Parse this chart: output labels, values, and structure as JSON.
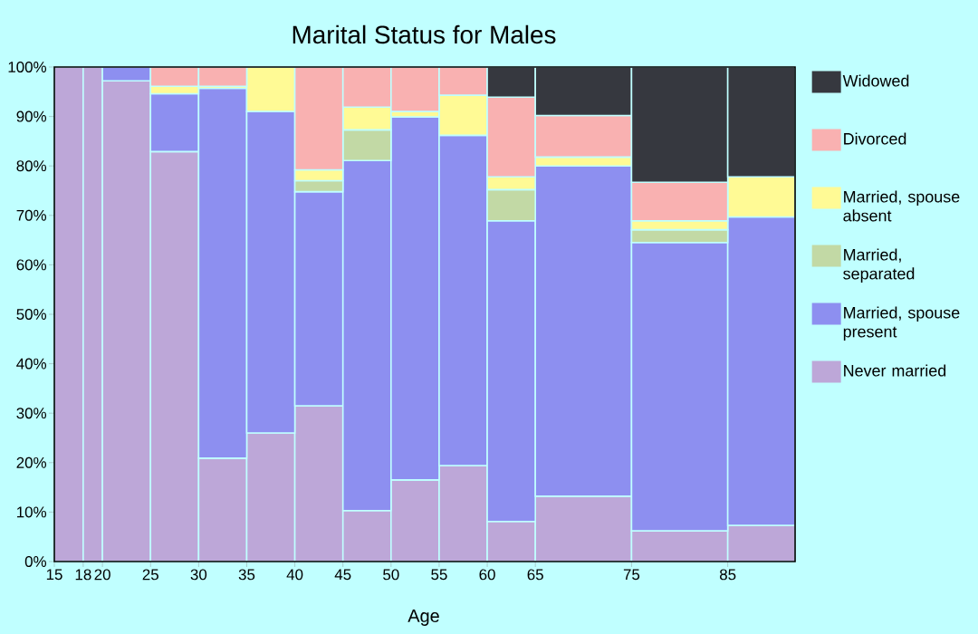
{
  "chart_data": {
    "type": "bar",
    "stacked": true,
    "title": "Marital Status for Males",
    "xlabel": "Age",
    "x": [
      16.5,
      19,
      22.5,
      27.5,
      32.5,
      37.5,
      42.5,
      47.5,
      52.5,
      57.5,
      62.5,
      70,
      80,
      88.5
    ],
    "xlim": [
      15,
      92
    ],
    "xticks": [
      15,
      18,
      20,
      25,
      30,
      35,
      40,
      45,
      50,
      55,
      60,
      65,
      75,
      85
    ],
    "ylim": [
      0,
      100
    ],
    "yticks": [
      {
        "value": 0,
        "label": "0%"
      },
      {
        "value": 10,
        "label": "10%"
      },
      {
        "value": 20,
        "label": "20%"
      },
      {
        "value": 30,
        "label": "30%"
      },
      {
        "value": 40,
        "label": "40%"
      },
      {
        "value": 50,
        "label": "50%"
      },
      {
        "value": 60,
        "label": "60%"
      },
      {
        "value": 70,
        "label": "70%"
      },
      {
        "value": 80,
        "label": "80%"
      },
      {
        "value": 90,
        "label": "90%"
      },
      {
        "value": 100,
        "label": "100%"
      }
    ],
    "legend": "right",
    "series": [
      {
        "name": "Never married",
        "color": "#bda7d8",
        "values": [
          100,
          100,
          97.2,
          82.9,
          20.9,
          26.0,
          31.5,
          10.3,
          16.5,
          19.4,
          8.1,
          13.2,
          6.2,
          7.3
        ]
      },
      {
        "name": "Married, spouse present",
        "color": "#8d8ff0",
        "values": [
          0,
          0,
          2.8,
          11.7,
          74.8,
          65.0,
          43.3,
          70.8,
          73.4,
          66.8,
          60.8,
          66.8,
          58.3,
          62.4
        ]
      },
      {
        "name": "Married, separated",
        "color": "#c2d9a5",
        "values": [
          0,
          0,
          0,
          0,
          0,
          0,
          2.2,
          6.2,
          0,
          0,
          6.3,
          0,
          2.6,
          0
        ]
      },
      {
        "name": "Married, spouse absent",
        "color": "#fffa95",
        "values": [
          0,
          0,
          0,
          1.5,
          0.4,
          9.0,
          2.2,
          4.6,
          1.1,
          8.1,
          2.6,
          1.8,
          1.8,
          8.1
        ]
      },
      {
        "name": "Divorced",
        "color": "#f9b1b1",
        "values": [
          0,
          0,
          0,
          3.9,
          3.9,
          0,
          20.8,
          8.1,
          9.0,
          5.7,
          16.1,
          8.4,
          7.8,
          0
        ]
      },
      {
        "name": "Widowed",
        "color": "#36383f",
        "values": [
          0,
          0,
          0,
          0,
          0,
          0,
          0,
          0,
          0,
          0,
          6.1,
          9.8,
          23.3,
          22.2
        ]
      }
    ]
  }
}
